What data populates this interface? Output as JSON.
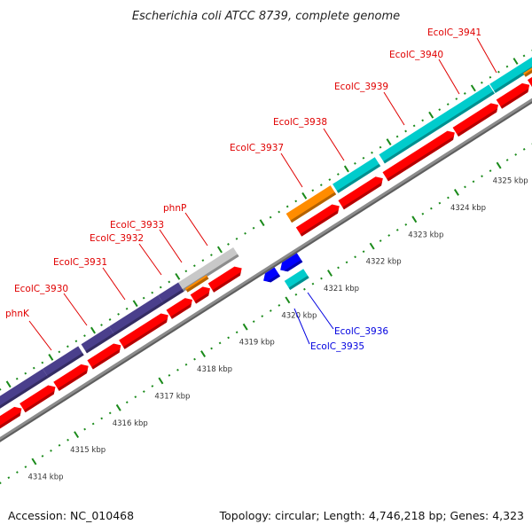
{
  "title": "Escherichia coli ATCC 8739, complete genome",
  "footer": {
    "accession": "Accession: NC_010468",
    "summary": "Topology: circular; Length: 4,746,218 bp; Genes: 4,323"
  },
  "colors": {
    "backbone": "#8c8c8c",
    "ruler": "#1a8a1a",
    "forward": "#ff0000",
    "reverse": "#0000ff",
    "label_forward": "#e00000",
    "label_reverse": "#0000e0",
    "purple": "#4a3f8c",
    "teal": "#00cccc",
    "orange": "#ff8c00",
    "gray": "#c8c8c8"
  },
  "ruler_ticks": [
    {
      "kbp": 4314,
      "label": "4314 kbp"
    },
    {
      "kbp": 4315,
      "label": "4315 kbp"
    },
    {
      "kbp": 4316,
      "label": "4316 kbp"
    },
    {
      "kbp": 4317,
      "label": "4317 kbp"
    },
    {
      "kbp": 4318,
      "label": "4318 kbp"
    },
    {
      "kbp": 4319,
      "label": "4319 kbp"
    },
    {
      "kbp": 4320,
      "label": "4320 kbp"
    },
    {
      "kbp": 4321,
      "label": "4321 kbp"
    },
    {
      "kbp": 4322,
      "label": "4322 kbp"
    },
    {
      "kbp": 4323,
      "label": "4323 kbp"
    },
    {
      "kbp": 4324,
      "label": "4324 kbp"
    },
    {
      "kbp": 4325,
      "label": "4325 kbp"
    }
  ],
  "feature_row": [
    {
      "start": 4312.5,
      "end": 4315.14,
      "color": "purple"
    },
    {
      "start": 4315.14,
      "end": 4315.98,
      "color": "purple"
    },
    {
      "start": 4316.05,
      "end": 4316.71,
      "color": "purple"
    },
    {
      "start": 4316.71,
      "end": 4317.87,
      "color": "purple"
    },
    {
      "start": 4317.87,
      "end": 4318.35,
      "color": "purple"
    },
    {
      "start": 4318.35,
      "end": 4319.65,
      "color": "gray"
    },
    {
      "start": 4320.9,
      "end": 4321.95,
      "color": "orange"
    },
    {
      "start": 4322.0,
      "end": 4323.0,
      "color": "teal"
    },
    {
      "start": 4323.1,
      "end": 4325.7,
      "color": "teal"
    },
    {
      "start": 4325.72,
      "end": 4328,
      "color": "teal"
    }
  ],
  "small_features": [
    {
      "start": 4318.4,
      "end": 4318.9,
      "color": "orange"
    },
    {
      "start": 4326.4,
      "end": 4328,
      "color": "orange"
    }
  ],
  "forward_genes": [
    [
      4312.8,
      4314.36
    ],
    [
      4314.38,
      4315.16
    ],
    [
      4315.18,
      4315.94
    ],
    [
      4315.98,
      4316.71
    ],
    [
      4316.73,
      4317.83
    ],
    [
      4317.85,
      4318.4
    ],
    [
      4318.42,
      4318.82
    ],
    [
      4318.84,
      4319.57
    ],
    [
      4320.92,
      4321.88
    ],
    [
      4321.92,
      4322.91
    ],
    [
      4322.97,
      4324.61
    ],
    [
      4324.63,
      4325.64
    ],
    [
      4325.66,
      4326.38
    ],
    [
      4326.4,
      4327.6
    ]
  ],
  "reverse_genes": [
    [
      4319.8,
      4320.13
    ],
    [
      4320.2,
      4320.66
    ]
  ],
  "reverse_feature": {
    "start": 4320.15,
    "end": 4320.6,
    "color": "teal"
  },
  "labels": [
    {
      "text": "phnK",
      "strand": "forward"
    },
    {
      "text": "EcolC_3930",
      "strand": "forward"
    },
    {
      "text": "EcolC_3931",
      "strand": "forward"
    },
    {
      "text": "EcolC_3932",
      "strand": "forward"
    },
    {
      "text": "EcolC_3933",
      "strand": "forward"
    },
    {
      "text": "phnP",
      "strand": "forward"
    },
    {
      "text": "EcolC_3937",
      "strand": "forward"
    },
    {
      "text": "EcolC_3938",
      "strand": "forward"
    },
    {
      "text": "EcolC_3939",
      "strand": "forward"
    },
    {
      "text": "EcolC_3940",
      "strand": "forward"
    },
    {
      "text": "EcolC_3941",
      "strand": "forward"
    },
    {
      "text": "EcolC_3936",
      "strand": "reverse"
    },
    {
      "text": "EcolC_3935",
      "strand": "reverse"
    }
  ]
}
